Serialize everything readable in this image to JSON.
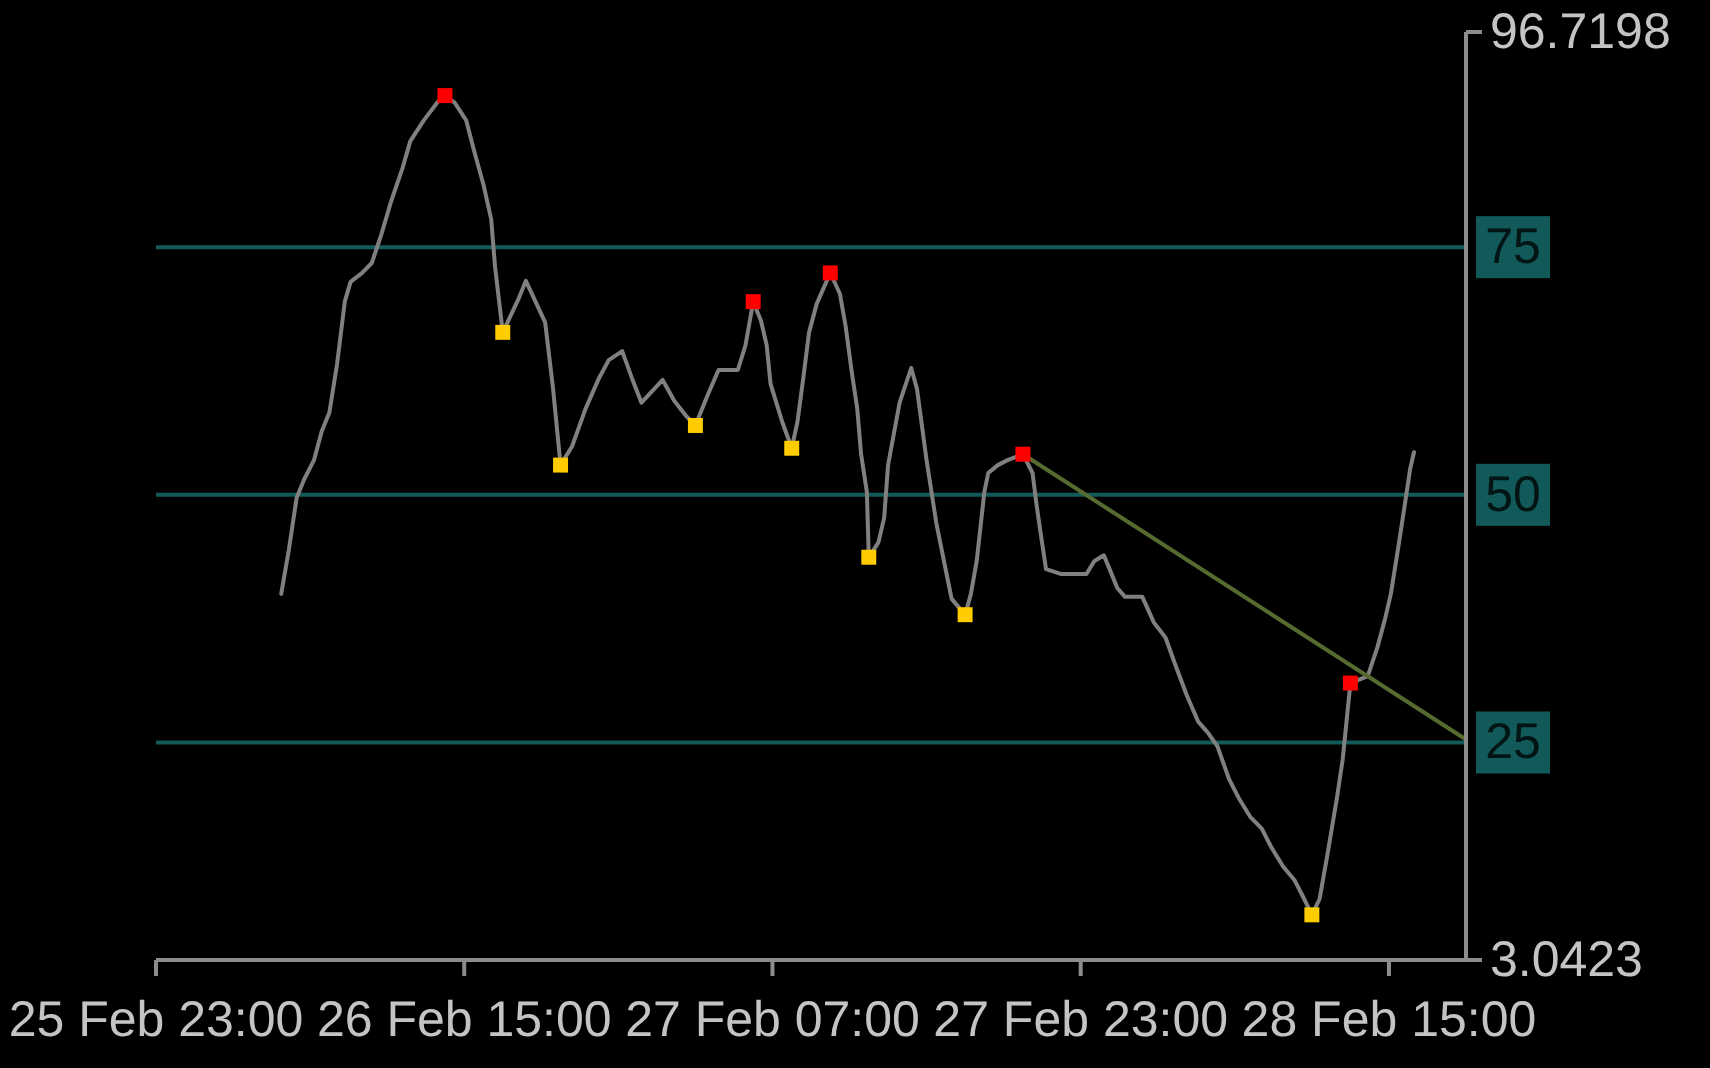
{
  "chart_data": {
    "type": "line",
    "xlim": [
      "--02-25T23:00",
      "--02-28T19:00"
    ],
    "xticks": [
      {
        "value": "--02-25T23:00",
        "label": "25 Feb 23:00"
      },
      {
        "value": "--02-26T15:00",
        "label": "26 Feb 15:00"
      },
      {
        "value": "--02-27T07:00",
        "label": "27 Feb 07:00"
      },
      {
        "value": "--02-27T23:00",
        "label": "27 Feb 23:00"
      },
      {
        "value": "--02-28T15:00",
        "label": "28 Feb 15:00"
      }
    ],
    "ylim": [
      3.0423,
      96.7198
    ],
    "yticks": [
      3.0423,
      96.7198
    ],
    "ref_lines": [
      {
        "axis": "y",
        "value": 75,
        "label": "75",
        "color": "#125a5a"
      },
      {
        "axis": "y",
        "value": 50,
        "label": "50",
        "color": "#125a5a"
      },
      {
        "axis": "y",
        "value": 25,
        "label": "25",
        "color": "#125a5a"
      }
    ],
    "series": [
      {
        "color": "#808080",
        "x": [
          "--02-26T05:30",
          "--02-26T05:54",
          "--02-26T06:18",
          "--02-26T06:42",
          "--02-26T07:12",
          "--02-26T07:36",
          "--02-26T08:00",
          "--02-26T08:24",
          "--02-26T08:48",
          "--02-26T09:06",
          "--02-26T09:42",
          "--02-26T10:12",
          "--02-26T10:42",
          "--02-26T11:12",
          "--02-26T11:48",
          "--02-26T12:12",
          "--02-26T12:54",
          "--02-26T13:36",
          "--02-26T14:00",
          "--02-26T14:30",
          "--02-26T15:06",
          "--02-26T15:30",
          "--02-26T16:00",
          "--02-26T16:24",
          "--02-26T16:36",
          "--02-26T17:00",
          "--02-26T17:48",
          "--02-26T18:12",
          "--02-26T18:42",
          "--02-26T19:12",
          "--02-26T19:36",
          "--02-26T20:00",
          "--02-26T20:36",
          "--02-26T21:18",
          "--02-26T22:00",
          "--02-26T22:30",
          "--02-26T23:12",
          "--02-26T23:42",
          "--02-27T00:12",
          "--02-27T01:18",
          "--02-27T01:54",
          "--02-27T02:30",
          "--02-27T03:00",
          "--02-27T03:36",
          "--02-27T04:12",
          "--02-27T05:12",
          "--02-27T05:36",
          "--02-27T06:00",
          "--02-27T06:24",
          "--02-27T06:42",
          "--02-27T06:54",
          "--02-27T07:12",
          "--02-27T07:30",
          "--02-27T08:00",
          "--02-27T08:18",
          "--02-27T08:36",
          "--02-27T08:54",
          "--02-27T09:18",
          "--02-27T10:00",
          "--02-27T10:30",
          "--02-27T10:48",
          "--02-27T11:06",
          "--02-27T11:24",
          "--02-27T11:36",
          "--02-27T11:54",
          "--02-27T12:00",
          "--02-27T12:30",
          "--02-27T12:48",
          "--02-27T13:00",
          "--02-27T13:36",
          "--02-27T14:12",
          "--02-27T14:30",
          "--02-27T15:00",
          "--02-27T15:30",
          "--02-27T16:06",
          "--02-27T16:18",
          "--02-27T17:00",
          "--02-27T17:18",
          "--02-27T17:36",
          "--02-27T18:00",
          "--02-27T18:12",
          "--02-27T18:42",
          "--02-27T19:12",
          "--02-27T20:00",
          "--02-27T20:30",
          "--02-27T20:42",
          "--02-27T20:54",
          "--02-27T21:12",
          "--02-27T22:00",
          "--02-27T23:18",
          "--02-27T23:42",
          "--02-28T00:12",
          "--02-28T00:30",
          "--02-28T00:54",
          "--02-28T01:18",
          "--02-28T02:12",
          "--02-28T02:48",
          "--02-28T03:24",
          "--02-28T03:54",
          "--02-28T04:30",
          "--02-28T05:06",
          "--02-28T05:36",
          "--02-28T06:06",
          "--02-28T06:42",
          "--02-28T07:12",
          "--02-28T07:48",
          "--02-28T08:24",
          "--02-28T08:54",
          "--02-28T09:30",
          "--02-28T10:06",
          "--02-28T10:36",
          "--02-28T11:00",
          "--02-28T11:24",
          "--02-28T11:48",
          "--02-28T12:18",
          "--02-28T12:36",
          "--02-28T13:00",
          "--02-28T13:54",
          "--02-28T14:24",
          "--02-28T14:48",
          "--02-28T15:06",
          "--02-28T15:30",
          "--02-28T15:48",
          "--02-28T16:06",
          "--02-28T16:18"
        ],
        "values": [
          40.0,
          44.5,
          49.7,
          51.6,
          53.5,
          56.4,
          58.3,
          63.2,
          69.5,
          71.5,
          72.4,
          73.4,
          76.3,
          79.6,
          83.0,
          85.7,
          87.8,
          89.6,
          90.3,
          89.6,
          87.8,
          84.8,
          81.3,
          77.8,
          73.0,
          66.4,
          69.7,
          71.6,
          69.5,
          67.4,
          60.9,
          53.0,
          54.9,
          58.7,
          61.8,
          63.6,
          64.5,
          61.8,
          59.3,
          61.6,
          59.5,
          58.0,
          57.0,
          59.9,
          62.6,
          62.6,
          65.1,
          69.5,
          67.6,
          65.1,
          61.2,
          59.3,
          57.4,
          54.7,
          57.4,
          61.8,
          66.4,
          69.3,
          72.4,
          70.3,
          67.0,
          62.6,
          58.7,
          54.1,
          50.3,
          43.7,
          45.2,
          47.7,
          53.0,
          59.3,
          62.8,
          60.7,
          53.5,
          47.2,
          41.4,
          39.5,
          37.9,
          40.0,
          43.3,
          50.3,
          52.2,
          53.0,
          53.5,
          54.1,
          52.2,
          49.1,
          46.4,
          42.5,
          42.0,
          42.0,
          43.3,
          43.9,
          42.5,
          40.6,
          39.7,
          39.7,
          37.1,
          35.6,
          32.9,
          29.8,
          27.1,
          26.0,
          24.6,
          21.3,
          19.4,
          17.5,
          16.3,
          14.4,
          12.5,
          11.1,
          9.2,
          7.6,
          9.2,
          13.6,
          19.4,
          23.3,
          31.0,
          31.7,
          34.6,
          37.5,
          40.0,
          44.9,
          48.7,
          52.6,
          54.3
        ]
      },
      {
        "color": "#556b2f",
        "x": [
          "--02-27T20:00",
          "--02-28T19:00"
        ],
        "values": [
          54.1,
          25.3
        ]
      },
      {
        "type": "scatter",
        "color": "#ff0000",
        "marker": "square",
        "x": [
          "--02-26T14:00",
          "--02-27T06:00",
          "--02-27T10:00",
          "--02-27T20:00",
          "--02-28T13:00"
        ],
        "values": [
          90.3,
          69.5,
          72.4,
          54.1,
          31.0
        ]
      },
      {
        "type": "scatter",
        "color": "#ffcc00",
        "marker": "square",
        "x": [
          "--02-26T17:00",
          "--02-26T20:00",
          "--02-27T03:00",
          "--02-27T08:00",
          "--02-27T12:00",
          "--02-27T17:00",
          "--02-28T11:00"
        ],
        "values": [
          66.4,
          53.0,
          57.0,
          54.7,
          43.7,
          37.9,
          7.6
        ]
      }
    ]
  }
}
